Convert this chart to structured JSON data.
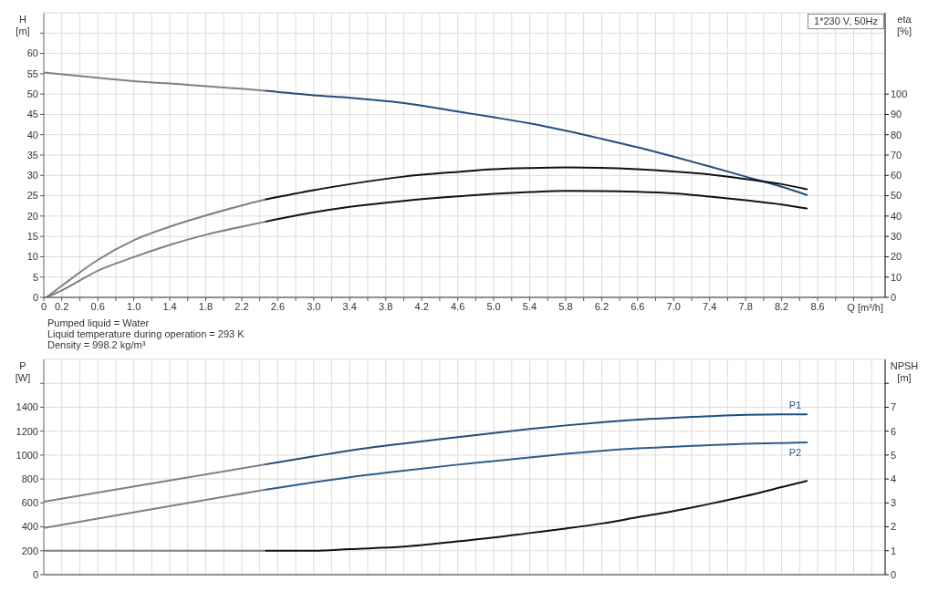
{
  "chart_data": [
    {
      "type": "line",
      "title": "1*230 V, 50Hz",
      "xlabel": "Q [m³/h]",
      "ylabel": "H [m]",
      "y2label": "eta [%]",
      "annotations": [
        "Pumped liquid = Water",
        "Liquid temperature during operation = 293 K",
        "Density = 998.2 kg/m³"
      ],
      "xlim": [
        0,
        9.35
      ],
      "xticks": [
        0,
        0.2,
        {
          "value": 0.4,
          "label": null
        },
        0.6,
        {
          "value": 0.8,
          "label": null
        },
        {
          "value": 1,
          "label": "1.0"
        },
        {
          "value": 1.2,
          "label": null
        },
        1.4,
        {
          "value": 1.6,
          "label": null
        },
        1.8,
        {
          "value": 2,
          "label": null
        },
        2.2,
        {
          "value": 2.4,
          "label": null
        },
        2.6,
        {
          "value": 2.8,
          "label": null
        },
        {
          "value": 3,
          "label": "3.0"
        },
        {
          "value": 3.2,
          "label": null
        },
        3.4,
        {
          "value": 3.6,
          "label": null
        },
        3.8,
        {
          "value": 4,
          "label": null
        },
        4.2,
        {
          "value": 4.4,
          "label": null
        },
        4.6,
        {
          "value": 4.8,
          "label": null
        },
        {
          "value": 5,
          "label": "5.0"
        },
        {
          "value": 5.2,
          "label": null
        },
        5.4,
        {
          "value": 5.6,
          "label": null
        },
        5.8,
        {
          "value": 6,
          "label": null
        },
        6.2,
        {
          "value": 6.4,
          "label": null
        },
        6.6,
        {
          "value": 6.8,
          "label": null
        },
        {
          "value": 7,
          "label": "7.0"
        },
        {
          "value": 7.2,
          "label": null
        },
        7.4,
        {
          "value": 7.6,
          "label": null
        },
        7.8,
        {
          "value": 8,
          "label": null
        },
        8.2,
        {
          "value": 8.4,
          "label": null
        },
        8.6,
        {
          "value": 8.8,
          "label": null
        },
        {
          "value": 9,
          "label": null
        },
        {
          "value": 9.2,
          "label": null
        }
      ],
      "ylim": [
        0,
        70
      ],
      "yticks": [
        0,
        5,
        10,
        15,
        20,
        25,
        30,
        35,
        40,
        45,
        50,
        55,
        60,
        {
          "value": 65,
          "label": null
        }
      ],
      "y2lim": [
        0,
        140
      ],
      "y2ticks": [
        0,
        10,
        20,
        30,
        40,
        50,
        60,
        70,
        80,
        90,
        100
      ],
      "grid": true,
      "series": [
        {
          "color": "#808080",
          "x": [
            0,
            0.6,
            1,
            1.6,
            2.2,
            2.47
          ],
          "values": [
            55.3,
            54,
            53.2,
            52.3,
            51.3,
            50.8
          ]
        },
        {
          "color": "#1f4f80",
          "x": [
            2.47,
            3,
            3.4,
            4,
            4.6,
            5,
            5.4,
            5.8,
            6.2,
            6.6,
            7,
            7.4,
            7.8,
            8.2,
            8.48
          ],
          "values": [
            50.8,
            49.7,
            49.1,
            47.8,
            45.7,
            44.3,
            42.8,
            41,
            39,
            36.9,
            34.6,
            32.2,
            29.7,
            27.2,
            25.2
          ]
        },
        {
          "color": "#808080",
          "axis": "y2",
          "x": [
            0.03,
            0.2,
            0.6,
            1,
            1.4,
            1.8,
            2.2,
            2.47
          ],
          "values": [
            0,
            5.7,
            18.4,
            28.1,
            34.8,
            40.3,
            45.2,
            48.2
          ]
        },
        {
          "color": "#111111",
          "axis": "y2",
          "x": [
            2.47,
            3,
            3.4,
            4,
            4.6,
            5,
            5.4,
            5.8,
            6.2,
            6.6,
            7,
            7.4,
            7.8,
            8.2,
            8.48
          ],
          "values": [
            48.2,
            52.7,
            55.7,
            59.4,
            61.7,
            63,
            63.6,
            63.9,
            63.7,
            63,
            61.9,
            60.5,
            58.2,
            55.7,
            53.2
          ]
        },
        {
          "color": "#808080",
          "axis": "y2",
          "x": [
            0.03,
            0.2,
            0.6,
            1,
            1.4,
            1.8,
            2.2,
            2.47
          ],
          "values": [
            0,
            3.4,
            13.1,
            19.8,
            25.8,
            30.8,
            34.8,
            37.3
          ]
        },
        {
          "color": "#111111",
          "axis": "y2",
          "x": [
            2.47,
            3,
            3.4,
            4,
            4.6,
            5,
            5.4,
            5.8,
            6.2,
            6.6,
            7,
            7.4,
            7.8,
            8.2,
            8.48
          ],
          "values": [
            37.3,
            41.8,
            44.5,
            47.5,
            49.7,
            50.9,
            51.8,
            52.4,
            52.3,
            51.9,
            51.1,
            49.6,
            47.8,
            45.7,
            43.7
          ]
        }
      ]
    },
    {
      "type": "line",
      "ylabel": "P [W]",
      "y2label": "NPSH [m]",
      "tick_labels": "y",
      "xlim": [
        0,
        9.35
      ],
      "xticks": [
        0,
        0.2,
        0.4,
        0.6,
        0.8,
        1,
        1.2,
        1.4,
        1.6,
        1.8,
        2,
        2.2,
        2.4,
        2.6,
        2.8,
        3,
        3.2,
        3.4,
        3.6,
        3.8,
        4,
        4.2,
        4.4,
        4.6,
        4.8,
        5,
        5.2,
        5.4,
        5.6,
        5.8,
        6,
        6.2,
        6.4,
        6.6,
        6.8,
        7,
        7.2,
        7.4,
        7.6,
        7.8,
        8,
        8.2,
        8.4,
        8.6,
        8.8,
        9,
        9.2
      ],
      "ylim": [
        0,
        1800
      ],
      "yticks": [
        0,
        200,
        400,
        600,
        800,
        1000,
        1200,
        1400,
        {
          "value": 1600,
          "label": null
        }
      ],
      "y2lim": [
        0,
        9
      ],
      "y2ticks": [
        0,
        1,
        2,
        3,
        4,
        5,
        6,
        7,
        {
          "value": 8,
          "label": null
        }
      ],
      "grid": true,
      "series": [
        {
          "color": "#808080",
          "x": [
            0,
            1.2,
            2.47
          ],
          "values": [
            610,
            762,
            923
          ]
        },
        {
          "name": "P1",
          "color": "#1f4f80",
          "x": [
            2.47,
            3,
            3.4,
            4,
            4.6,
            5,
            5.4,
            5.8,
            6.2,
            6.6,
            7,
            7.4,
            7.8,
            8.2,
            8.48
          ],
          "values": [
            923,
            989,
            1038,
            1097,
            1150,
            1185,
            1218,
            1248,
            1274,
            1297,
            1312,
            1325,
            1336,
            1341,
            1341
          ]
        },
        {
          "color": "#808080",
          "x": [
            0,
            1.2,
            2.47
          ],
          "values": [
            390,
            547,
            712
          ]
        },
        {
          "name": "P2",
          "color": "#2a5d8f",
          "x": [
            2.47,
            3,
            3.4,
            4,
            4.6,
            5,
            5.4,
            5.8,
            6.2,
            6.6,
            7,
            7.4,
            7.8,
            8.2,
            8.48
          ],
          "values": [
            712,
            772,
            815,
            870,
            920,
            950,
            980,
            1010,
            1035,
            1056,
            1070,
            1083,
            1094,
            1101,
            1105
          ]
        },
        {
          "color": "#808080",
          "axis": "y2",
          "x": [
            0,
            2.47
          ],
          "values": [
            1,
            1
          ]
        },
        {
          "color": "#111111",
          "axis": "y2",
          "x": [
            2.47,
            3,
            3.4,
            4,
            4.6,
            5,
            5.4,
            5.8,
            6.2,
            6.6,
            7,
            7.4,
            7.8,
            8.2,
            8.48
          ],
          "values": [
            1,
            1,
            1.07,
            1.17,
            1.39,
            1.55,
            1.74,
            1.93,
            2.14,
            2.4,
            2.66,
            2.96,
            3.29,
            3.66,
            3.92
          ]
        }
      ]
    }
  ]
}
